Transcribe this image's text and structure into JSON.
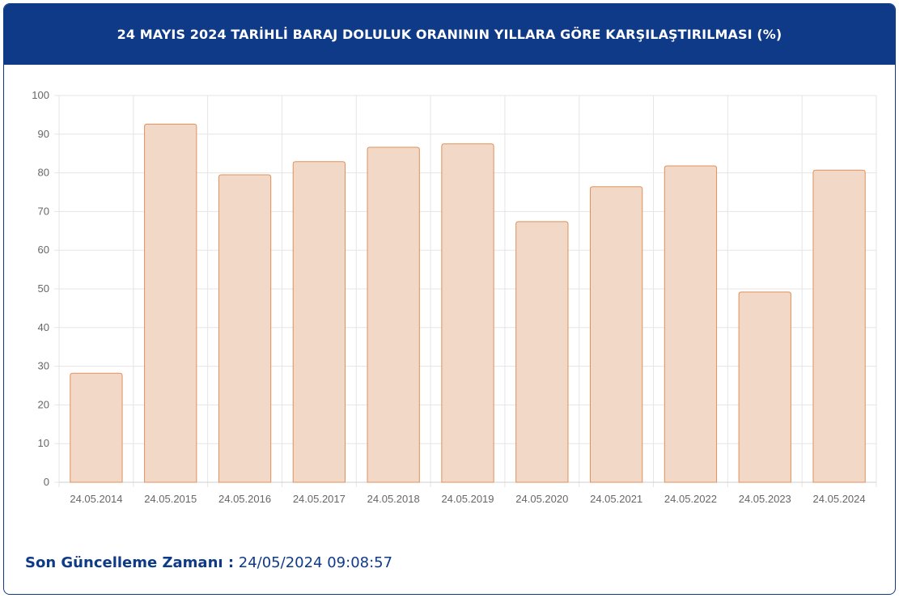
{
  "header": {
    "title": "24 MAYIS 2024 TARİHLİ BARAJ DOLULUK ORANININ YILLARA GÖRE KARŞILAŞTIRILMASI (%)"
  },
  "footer": {
    "label": "Son Güncelleme Zamanı :",
    "value": "24/05/2024 09:08:57"
  },
  "colors": {
    "header_bg": "#0f3a87",
    "bar_fill": "#f2d8c7",
    "bar_stroke": "#e0905a",
    "grid": "#e5e5e5",
    "tick_text": "#666666"
  },
  "chart_data": {
    "type": "bar",
    "title": "24 MAYIS 2024 TARİHLİ BARAJ DOLULUK ORANININ YILLARA GÖRE KARŞILAŞTIRILMASI (%)",
    "xlabel": "",
    "ylabel": "",
    "categories": [
      "24.05.2014",
      "24.05.2015",
      "24.05.2016",
      "24.05.2017",
      "24.05.2018",
      "24.05.2019",
      "24.05.2020",
      "24.05.2021",
      "24.05.2022",
      "24.05.2023",
      "24.05.2024"
    ],
    "values": [
      28.2,
      92.6,
      79.5,
      82.9,
      86.6,
      87.5,
      67.4,
      76.4,
      81.8,
      49.2,
      80.7
    ],
    "ylim": [
      0,
      100
    ],
    "yticks": [
      0,
      10,
      20,
      30,
      40,
      50,
      60,
      70,
      80,
      90,
      100
    ],
    "grid": true,
    "legend": "none"
  }
}
